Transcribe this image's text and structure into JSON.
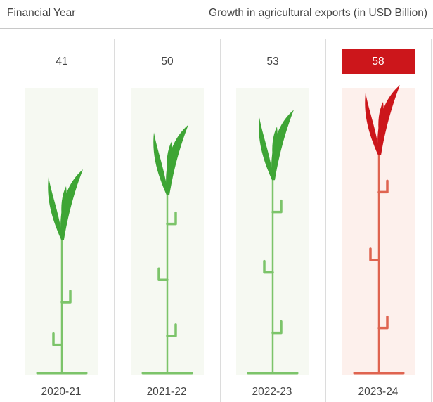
{
  "header": {
    "left_label": "Financial Year",
    "right_label": "Growth in agricultural exports (in USD Billion)"
  },
  "chart_data": {
    "type": "bar",
    "title": "",
    "xlabel": "Financial Year",
    "ylabel": "Growth in agricultural exports (in USD Billion)",
    "categories": [
      "2020-21",
      "2021-22",
      "2022-23",
      "2023-24"
    ],
    "values": [
      41,
      50,
      53,
      58
    ],
    "highlight_index": 3,
    "grid": false
  },
  "colors": {
    "plant_green": "#3ea535",
    "stem_green": "#7cc46a",
    "panel_green": "#f6f9f2",
    "highlight_red": "#cc161b",
    "stem_red": "#df6450",
    "panel_red": "#fdf0ec"
  }
}
